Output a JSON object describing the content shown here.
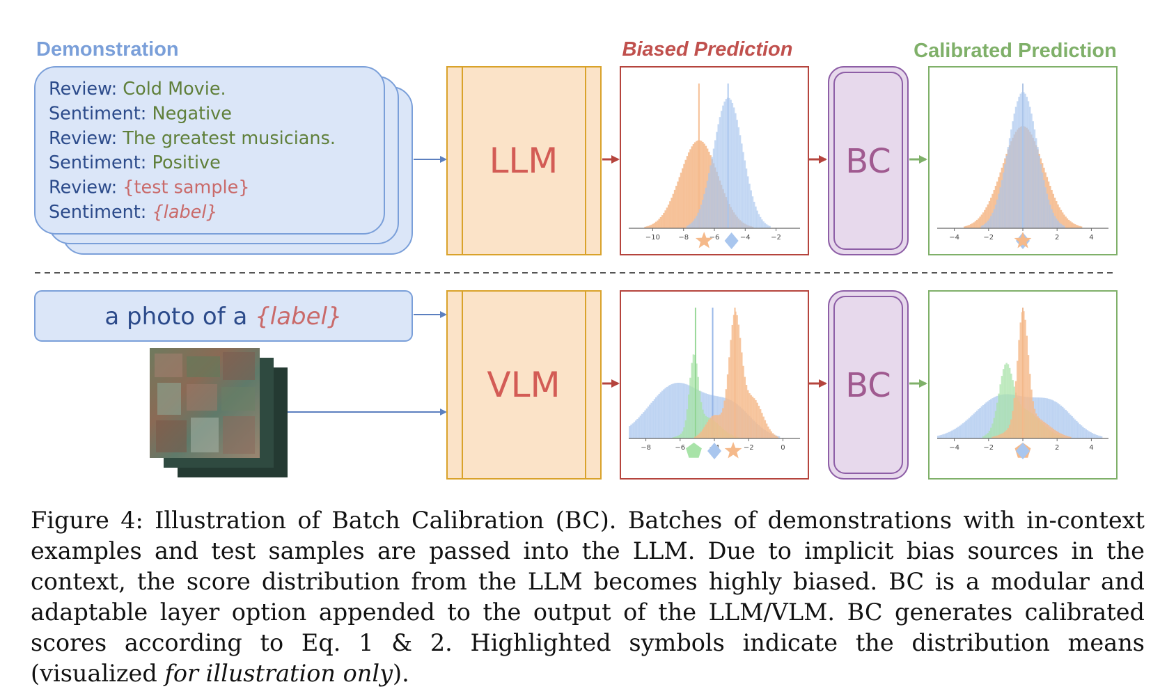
{
  "headers": {
    "demonstration": "Demonstration",
    "biased": "Biased Prediction",
    "calibrated": "Calibrated Prediction"
  },
  "demo_lines": [
    {
      "key": "Review:",
      "value": "Cold Movie.",
      "style": "green"
    },
    {
      "key": "Sentiment:",
      "value": "Negative",
      "style": "green"
    },
    {
      "key": "Review:",
      "value": "The greatest musicians.",
      "style": "green"
    },
    {
      "key": "Sentiment:",
      "value": "Positive",
      "style": "green"
    },
    {
      "key": "Review:",
      "value": "{test sample}",
      "style": "red"
    },
    {
      "key": "Sentiment:",
      "value": "{label}",
      "style": "red-italic"
    }
  ],
  "prompt": {
    "prefix": "a photo of a ",
    "label": "{label}"
  },
  "models": {
    "top": "LLM",
    "bottom": "VLM"
  },
  "bc_label": "BC",
  "axes": {
    "top_biased_ticks": [
      "−10",
      "−8",
      "−6",
      "−4",
      "−2"
    ],
    "top_calib_ticks": [
      "−4",
      "−2",
      "0",
      "2",
      "4"
    ],
    "bottom_biased_ticks": [
      "−8",
      "−6",
      "−4",
      "−2",
      "0"
    ],
    "bottom_calib_ticks": [
      "−4",
      "−2",
      "0",
      "2",
      "4"
    ]
  },
  "colors": {
    "blue_header": "#7a9fd9",
    "red_header": "#c0504d",
    "green_header": "#7fb069",
    "model_fill": "#fbe3c8",
    "model_border": "#d9a22a",
    "bc_fill": "#e7d9ec",
    "bc_border": "#8d5ea6",
    "orange_hist": "#f5b98a",
    "blue_hist": "#a9c6ee",
    "green_hist": "#a8e3a8"
  },
  "caption": {
    "text_before_italic": "Figure 4: Illustration of Batch Calibration (BC). Batches of demonstrations with in-context examples and test samples are passed into the LLM. Due to implicit bias sources in the context, the score distribution from the LLM becomes highly biased.  BC is a modular and adaptable layer option appended to the output of the LLM/VLM. BC generates calibrated scores according to Eq. 1 & 2. Highlighted symbols indicate the distribution means (visualized ",
    "italic": "for illustration only",
    "text_after_italic": ")."
  }
}
